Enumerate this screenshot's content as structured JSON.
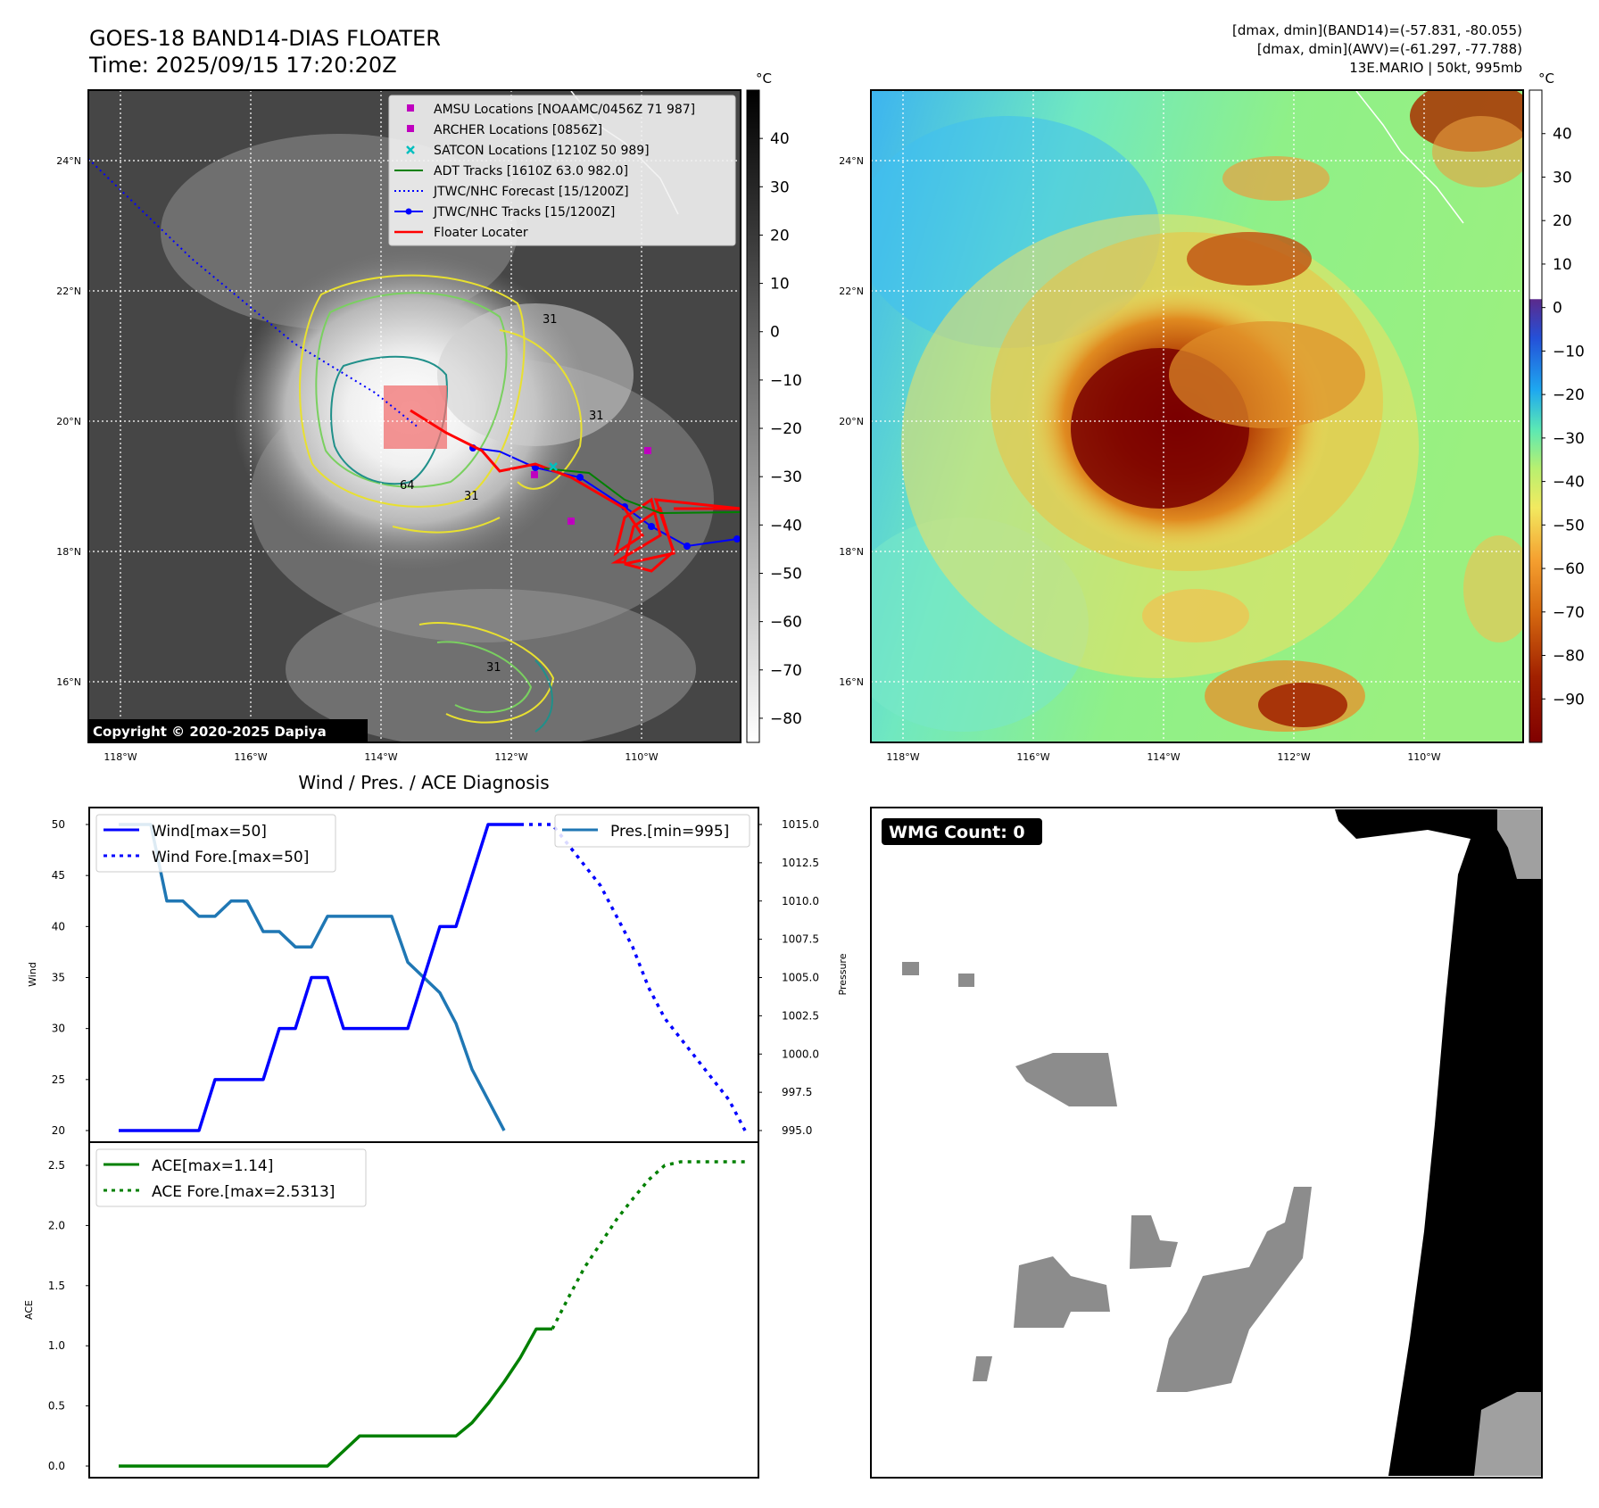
{
  "header": {
    "title_line1": "GOES-18 BAND14-DIAS FLOATER",
    "title_line2": "Time: 2025/09/15 17:20:20Z",
    "info_line1": "[dmax, dmin](BAND14)=(-57.831, -80.055)",
    "info_line2": "[dmax, dmin](AWV)=(-61.297, -77.788)",
    "info_line3": "13E.MARIO | 50kt, 995mb"
  },
  "map_panels": {
    "lat_ticks": [
      "24°N",
      "22°N",
      "20°N",
      "18°N",
      "16°N"
    ],
    "lon_ticks": [
      "118°W",
      "116°W",
      "114°W",
      "112°W",
      "110°W"
    ],
    "unit_label": "°C",
    "colorbar1_ticks": [
      "40",
      "30",
      "20",
      "10",
      "0",
      "−10",
      "−20",
      "−30",
      "−40",
      "−50",
      "−60",
      "−70",
      "−80"
    ],
    "colorbar2_ticks": [
      "40",
      "30",
      "20",
      "10",
      "0",
      "−10",
      "−20",
      "−30",
      "−40",
      "−50",
      "−60",
      "−70",
      "−80",
      "−90"
    ],
    "copyright": "Copyright © 2020-2025 Dapiya",
    "contour_labels": [
      "64",
      "31",
      "31",
      "31",
      "31"
    ],
    "legend": [
      {
        "label": "AMSU Locations [NOAAMC/0456Z 71 987]",
        "color": "#bf00bf",
        "marker": "square"
      },
      {
        "label": "ARCHER Locations [0856Z]",
        "color": "#bf00bf",
        "marker": "square"
      },
      {
        "label": "SATCON Locations [1210Z 50 989]",
        "color": "#00bfbf",
        "marker": "x"
      },
      {
        "label": "ADT Tracks [1610Z 63.0 982.0]",
        "color": "#008000",
        "marker": "line"
      },
      {
        "label": "JTWC/NHC Forecast [15/1200Z]",
        "color": "#0000ff",
        "marker": "dotted"
      },
      {
        "label": "JTWC/NHC Tracks [15/1200Z]",
        "color": "#0000ff",
        "marker": "line-dot"
      },
      {
        "label": "Floater Locater",
        "color": "#ff0000",
        "marker": "line"
      }
    ]
  },
  "diagnosis": {
    "title": "Wind / Pres. / ACE Diagnosis",
    "wind_ylabel": "Wind",
    "pres_ylabel": "Pressure",
    "ace_ylabel": "ACE",
    "wind_ticks": [
      "50",
      "45",
      "40",
      "35",
      "30",
      "25",
      "20"
    ],
    "pres_ticks": [
      "1015.0",
      "1012.5",
      "1010.0",
      "1007.5",
      "1005.0",
      "1002.5",
      "1000.0",
      "997.5",
      "995.0"
    ],
    "ace_ticks": [
      "2.5",
      "2.0",
      "1.5",
      "1.0",
      "0.5",
      "0.0"
    ],
    "legend_wind": "Wind[max=50]",
    "legend_wind_fore": "Wind Fore.[max=50]",
    "legend_pres": "Pres.[min=995]",
    "legend_ace": "ACE[max=1.14]",
    "legend_ace_fore": "ACE Fore.[max=2.5313]"
  },
  "wmg": {
    "label": "WMG Count: 0"
  },
  "colors": {
    "wind": "#0000ff",
    "pressure": "#1f77b4",
    "ace": "#008000",
    "track": "#ff0000"
  },
  "chart_data": [
    {
      "type": "line",
      "x": [
        0,
        1,
        2,
        3,
        4,
        5,
        6,
        7,
        8,
        9,
        10,
        11,
        12,
        13,
        14,
        15,
        16,
        17,
        18,
        19,
        20,
        21,
        22,
        23,
        24,
        25,
        26,
        27,
        28,
        29,
        30,
        31,
        32,
        33,
        34,
        35,
        36,
        37,
        38,
        39
      ],
      "series": [
        {
          "name": "Wind[max=50]",
          "x": [
            0,
            5,
            6,
            7,
            9,
            10,
            11,
            12,
            13,
            14,
            15,
            16,
            17,
            18,
            19,
            20,
            21,
            22,
            23,
            24,
            25
          ],
          "values": [
            20,
            20,
            25,
            25,
            25,
            30,
            30,
            35,
            35,
            30,
            30,
            30,
            30,
            30,
            35,
            40,
            40,
            45,
            50,
            50,
            50
          ]
        },
        {
          "name": "Wind Fore.[max=50]",
          "x": [
            25,
            26,
            27,
            28,
            29,
            30,
            31,
            32,
            33,
            34,
            35,
            36,
            37,
            38,
            39
          ],
          "values": [
            50,
            50,
            50,
            48,
            46,
            44,
            41,
            38,
            34,
            31,
            29,
            27,
            25,
            23,
            20
          ]
        },
        {
          "name": "Pres.[min=995]",
          "x": [
            0,
            2,
            3,
            4,
            5,
            6,
            7,
            8,
            9,
            10,
            11,
            12,
            13,
            14,
            15,
            16,
            17,
            18,
            19,
            20,
            21,
            22,
            23,
            24
          ],
          "values": [
            1015,
            1015,
            1010,
            1010,
            1009,
            1009,
            1010,
            1010,
            1008,
            1008,
            1007,
            1007,
            1009,
            1009,
            1009,
            1009,
            1009,
            1006,
            1005,
            1004,
            1002,
            999,
            997,
            995
          ]
        }
      ],
      "wind_ylim": [
        20,
        50
      ],
      "pres_ylim": [
        995,
        1015
      ]
    },
    {
      "type": "line",
      "x": [
        0,
        1,
        2,
        3,
        4,
        5,
        6,
        7,
        8,
        9,
        10,
        11,
        12,
        13,
        14,
        15,
        16,
        17,
        18,
        19,
        20,
        21,
        22,
        23,
        24,
        25,
        26,
        27,
        28,
        29,
        30,
        31,
        32,
        33,
        34,
        35,
        36,
        37,
        38,
        39
      ],
      "series": [
        {
          "name": "ACE[max=1.14]",
          "x": [
            0,
            13,
            15,
            21,
            22,
            23,
            24,
            25,
            26,
            27
          ],
          "values": [
            0,
            0,
            0.25,
            0.25,
            0.36,
            0.52,
            0.7,
            0.9,
            1.14,
            1.14
          ]
        },
        {
          "name": "ACE Fore.[max=2.5313]",
          "x": [
            27,
            28,
            29,
            30,
            31,
            32,
            33,
            34,
            35,
            36,
            37,
            38,
            39
          ],
          "values": [
            1.14,
            1.4,
            1.65,
            1.85,
            2.05,
            2.22,
            2.38,
            2.5,
            2.53,
            2.53,
            2.53,
            2.53,
            2.53
          ]
        }
      ],
      "ylim": [
        0,
        2.6
      ]
    }
  ]
}
